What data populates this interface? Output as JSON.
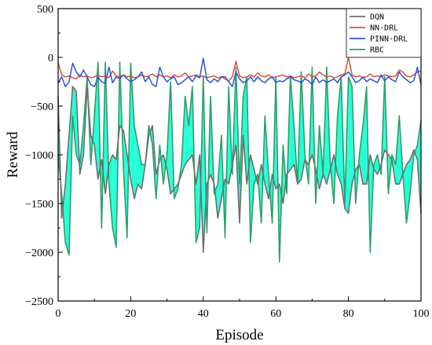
{
  "chart_data": {
    "type": "line",
    "xlabel": "Episode",
    "ylabel": "Reward",
    "xlim": [
      0,
      100
    ],
    "ylim": [
      -2500,
      500
    ],
    "xticks": [
      0,
      20,
      40,
      60,
      80,
      100
    ],
    "yticks": [
      500,
      0,
      -500,
      -1000,
      -1500,
      -2000,
      -2500
    ],
    "legend_position": "top-right",
    "fill_between": {
      "series": [
        "DQN",
        "RBC"
      ],
      "color": "#00ffd0"
    },
    "series": [
      {
        "name": "DQN",
        "color": "#6e6e6e",
        "values": [
          -400,
          -1650,
          -1300,
          -800,
          -300,
          -350,
          -1200,
          -1000,
          -300,
          -800,
          -900,
          -1250,
          -1050,
          -1400,
          -1100,
          -1000,
          -1050,
          -700,
          -750,
          -1000,
          -1250,
          -1450,
          -1300,
          -1350,
          -1100,
          -800,
          -700,
          -1200,
          -1050,
          -1000,
          -1150,
          -1400,
          -1350,
          -1300,
          -1200,
          -1100,
          -1050,
          -1000,
          -1300,
          -1000,
          -2000,
          -1300,
          -1200,
          -1300,
          -1650,
          -1450,
          -1250,
          -1300,
          -1100,
          -900,
          -1700,
          -800,
          -1300,
          -1000,
          -1150,
          -1300,
          -1100,
          -1300,
          -1450,
          -1200,
          -1350,
          -1300,
          -1500,
          -1200,
          -1150,
          -1100,
          -1300,
          -1250,
          -1050,
          -1100,
          -1000,
          -1150,
          -1350,
          -1200,
          -1300,
          -1150,
          -1000,
          -1200,
          -1300,
          -1550,
          -1600,
          -1300,
          -1150,
          -1100,
          -1300,
          -1300,
          -1000,
          -1150,
          -1200,
          -1100,
          -950,
          -1000,
          -1050,
          -1300,
          -1300,
          -1200,
          -1100,
          -1050,
          -950,
          -1050,
          -1600
        ]
      },
      {
        "name": "NN-DRL",
        "color": "#d9503a",
        "values": [
          -50,
          -180,
          -200,
          -190,
          -210,
          -220,
          -180,
          -200,
          -190,
          -210,
          -200,
          -180,
          -200,
          -190,
          -210,
          -140,
          -190,
          -200,
          -180,
          -200,
          -190,
          -210,
          -200,
          -180,
          -200,
          -190,
          -170,
          -200,
          -180,
          -200,
          -190,
          -210,
          -180,
          -200,
          -190,
          -160,
          -200,
          -190,
          -180,
          -200,
          -190,
          -210,
          -200,
          -190,
          -210,
          -200,
          -220,
          -240,
          -200,
          -40,
          -190,
          -210,
          -200,
          -180,
          -200,
          -160,
          -190,
          -200,
          -180,
          -210,
          -200,
          -190,
          -180,
          -200,
          -190,
          -210,
          -200,
          -190,
          -210,
          -170,
          -200,
          -190,
          -150,
          -180,
          -200,
          -190,
          -210,
          -200,
          -180,
          -170,
          0,
          -180,
          -200,
          -190,
          -210,
          -200,
          -170,
          -200,
          -190,
          -200,
          -180,
          -190,
          -200,
          -190,
          -130,
          -150,
          -190,
          -200,
          -180,
          -150,
          -140
        ]
      },
      {
        "name": "PINN-DRL",
        "color": "#2f54d4",
        "values": [
          -260,
          -200,
          -300,
          -250,
          -60,
          -150,
          -200,
          -130,
          -200,
          -280,
          -300,
          -200,
          -250,
          -270,
          -100,
          -260,
          -200,
          -220,
          -180,
          -220,
          -250,
          -230,
          -200,
          -150,
          -250,
          -200,
          -280,
          -300,
          -100,
          -200,
          -250,
          -220,
          -200,
          -280,
          -260,
          -230,
          -200,
          -250,
          -190,
          -210,
          -10,
          -230,
          -260,
          -220,
          -250,
          -200,
          -200,
          -250,
          -300,
          -150,
          -220,
          -260,
          -240,
          -200,
          -250,
          -200,
          -240,
          -260,
          -220,
          -200,
          -260,
          -240,
          -250,
          -220,
          -200,
          -230,
          -240,
          -260,
          -220,
          -240,
          -280,
          -200,
          -260,
          -230,
          -260,
          -240,
          -220,
          -260,
          -200,
          -180,
          -150,
          -200,
          -260,
          -240,
          -200,
          -250,
          -220,
          -240,
          -260,
          -180,
          -240,
          -200,
          -230,
          -250,
          -150,
          -200,
          -230,
          -260,
          -240,
          -100,
          -280
        ]
      },
      {
        "name": "RBC",
        "color": "#2e9e6a",
        "values": [
          -1000,
          -1400,
          -1900,
          -2030,
          -600,
          -1000,
          -1100,
          -700,
          -200,
          -1100,
          -600,
          -50,
          -1750,
          -50,
          -1300,
          -1750,
          -1950,
          -50,
          -1150,
          -1850,
          -60,
          -700,
          -900,
          -1100,
          -1100,
          -700,
          -900,
          -1450,
          -900,
          -1300,
          -1000,
          -250,
          -1450,
          -1350,
          -1100,
          -400,
          -700,
          -300,
          -1900,
          -1750,
          -200,
          -1800,
          -400,
          -1400,
          -1300,
          -800,
          -1850,
          -300,
          -1200,
          -100,
          -1300,
          -400,
          -200,
          -1900,
          -1300,
          -1200,
          -1700,
          -600,
          -1200,
          -1700,
          -200,
          -2100,
          -900,
          -1400,
          -200,
          -700,
          -1300,
          -150,
          -1000,
          -1300,
          -100,
          -1500,
          -700,
          -1200,
          -100,
          -1100,
          -1500,
          -600,
          -200,
          -1500,
          -200,
          -300,
          -1500,
          -1000,
          -700,
          -300,
          -2000,
          -1100,
          -1000,
          -1200,
          -200,
          -1400,
          -1000,
          -1100,
          -600,
          -1200,
          -1700,
          -1400,
          -1000,
          -900,
          -650
        ]
      }
    ]
  }
}
